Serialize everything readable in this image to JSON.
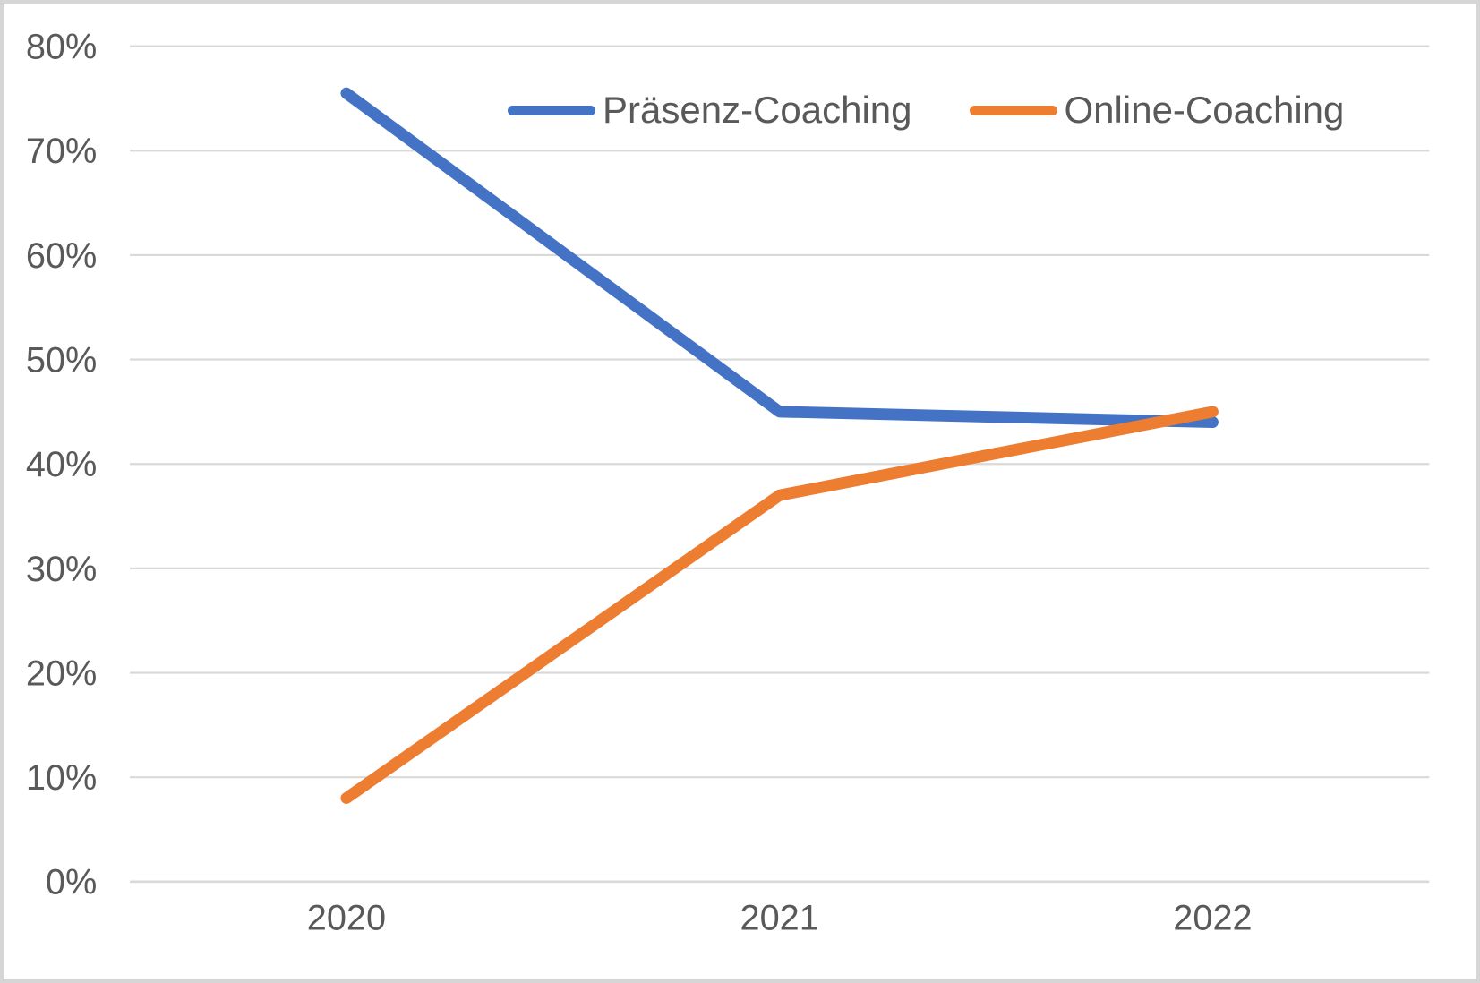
{
  "chart_data": {
    "type": "line",
    "title": "",
    "xlabel": "",
    "ylabel": "",
    "categories": [
      "2020",
      "2021",
      "2022"
    ],
    "series": [
      {
        "name": "Präsenz-Coaching",
        "color": "#4472C4",
        "values": [
          75.5,
          45,
          44
        ]
      },
      {
        "name": "Online-Coaching",
        "color": "#ED7D31",
        "values": [
          8,
          37,
          45
        ]
      }
    ],
    "ylim": [
      0,
      80
    ],
    "ytick_step": 10,
    "ytick_labels": [
      "0%",
      "10%",
      "20%",
      "30%",
      "40%",
      "50%",
      "60%",
      "70%",
      "80%"
    ],
    "grid": "horizontal",
    "legend_position": "top-center-overlay"
  },
  "legend": {
    "items": [
      {
        "label": "Präsenz-Coaching",
        "color": "#4472C4"
      },
      {
        "label": "Online-Coaching",
        "color": "#ED7D31"
      }
    ]
  },
  "colors": {
    "gridline": "#D9D9D9",
    "axis_line": "#D9D9D9",
    "axis_text": "#595959",
    "frame_border": "#D6D6D6",
    "background": "#FFFFFF"
  }
}
